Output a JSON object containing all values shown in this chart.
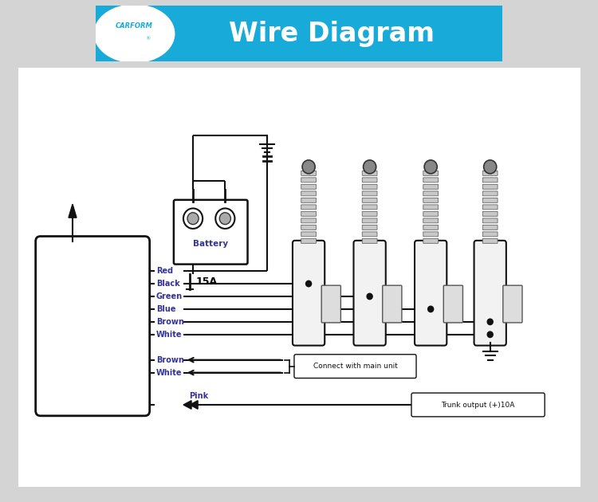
{
  "bg_color": "#d4d4d4",
  "diagram_bg": "#ffffff",
  "header_color": "#18aad8",
  "title": "Wire Diagram",
  "wire_labels_out": [
    "Red",
    "Black",
    "Green",
    "Blue",
    "Brown",
    "White"
  ],
  "wire_labels_in": [
    "Brown",
    "White"
  ],
  "wire_label_pink": "Pink",
  "connect_label": "Connect with main unit",
  "trunk_label": "Trunk output (+)10A",
  "fuse_label": "15A",
  "battery_label": "Battery",
  "label_color": "#333399"
}
